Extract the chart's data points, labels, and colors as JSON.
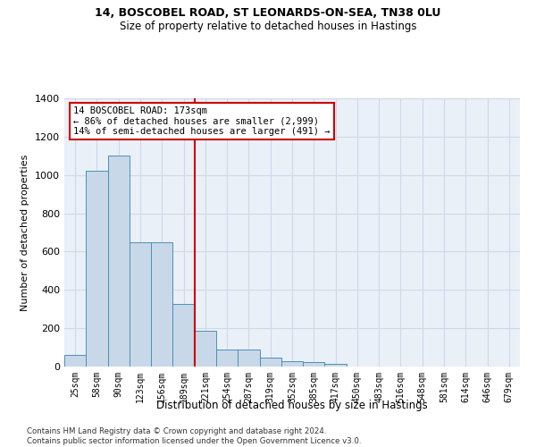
{
  "title_line1": "14, BOSCOBEL ROAD, ST LEONARDS-ON-SEA, TN38 0LU",
  "title_line2": "Size of property relative to detached houses in Hastings",
  "xlabel": "Distribution of detached houses by size in Hastings",
  "ylabel": "Number of detached properties",
  "bar_color": "#c8d8e8",
  "bar_edge_color": "#4a90b8",
  "categories": [
    "25sqm",
    "58sqm",
    "90sqm",
    "123sqm",
    "156sqm",
    "189sqm",
    "221sqm",
    "254sqm",
    "287sqm",
    "319sqm",
    "352sqm",
    "385sqm",
    "417sqm",
    "450sqm",
    "483sqm",
    "516sqm",
    "548sqm",
    "581sqm",
    "614sqm",
    "646sqm",
    "679sqm"
  ],
  "values": [
    62,
    1020,
    1100,
    650,
    650,
    325,
    185,
    90,
    90,
    45,
    28,
    25,
    15,
    0,
    0,
    0,
    0,
    0,
    0,
    0,
    0
  ],
  "ylim": [
    0,
    1400
  ],
  "yticks": [
    0,
    200,
    400,
    600,
    800,
    1000,
    1200,
    1400
  ],
  "vline_x": 5.5,
  "vline_color": "#cc0000",
  "annotation_text": "14 BOSCOBEL ROAD: 173sqm\n← 86% of detached houses are smaller (2,999)\n14% of semi-detached houses are larger (491) →",
  "annotation_box_color": "#ffffff",
  "annotation_box_edge": "#cc0000",
  "footnote": "Contains HM Land Registry data © Crown copyright and database right 2024.\nContains public sector information licensed under the Open Government Licence v3.0.",
  "grid_color": "#d0d8e8",
  "bg_color": "#eaf0f8"
}
